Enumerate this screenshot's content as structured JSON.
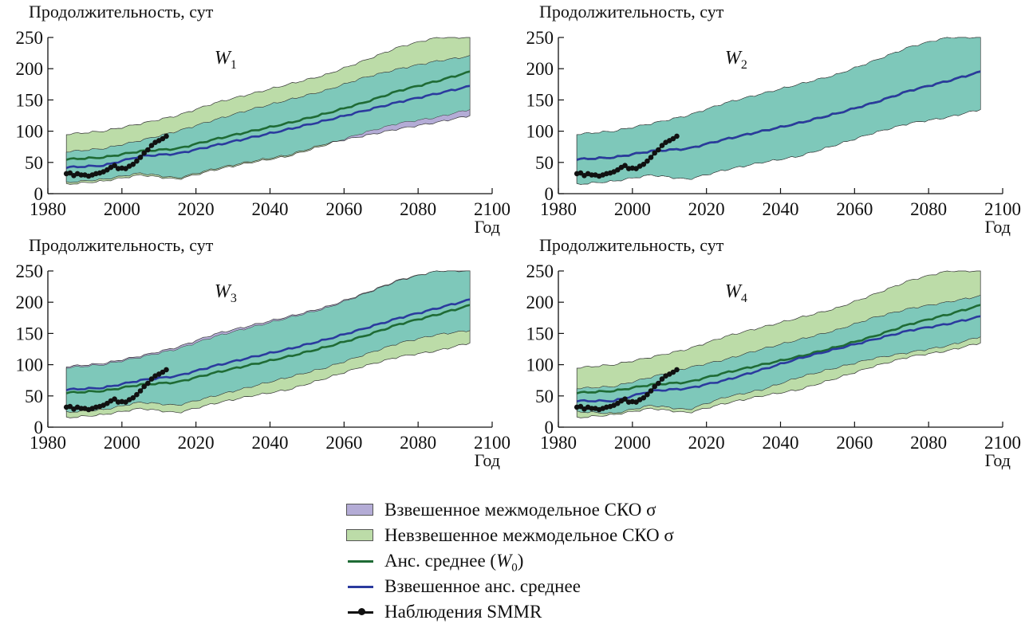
{
  "legend": {
    "weighted_sigma": "Взвешенное межмодельное СКО σ",
    "unweighted_sigma": "Невзвешенное межмодельное СКО σ",
    "ens_mean_prefix": "Анс. среднее (",
    "ens_mean_symbol": "W",
    "ens_mean_sub": "0",
    "ens_mean_suffix": ")",
    "weighted_mean": "Взвешенное анс. среднее",
    "observations": "Наблюдения SMMR"
  },
  "colors": {
    "weighted_band": "#b4acd6",
    "unweighted_band": "#bcdca8",
    "overlap_band": "#7ec8ba",
    "ens_mean": "#1f6b35",
    "weighted_mean": "#2b3a9e",
    "observations": "#111111"
  },
  "chart_data": [
    {
      "type": "area",
      "symbol": "W",
      "subscript": "1",
      "ylabel": "Продолжительность, сут",
      "xlabel": "Год",
      "xlim": [
        1980,
        2100
      ],
      "ylim": [
        0,
        250
      ],
      "xticks": [
        1980,
        2000,
        2020,
        2040,
        2060,
        2080,
        2100
      ],
      "yticks": [
        0,
        50,
        100,
        150,
        200,
        250
      ],
      "series": [
        {
          "name": "Анс. среднее (W0)",
          "x": [
            1985,
            1995,
            2005,
            2015,
            2025,
            2035,
            2045,
            2055,
            2065,
            2075,
            2085,
            2094
          ],
          "y": [
            55,
            58,
            68,
            72,
            87,
            100,
            113,
            128,
            145,
            165,
            180,
            195
          ]
        },
        {
          "name": "Взвешенное анс. среднее",
          "x": [
            1985,
            1995,
            2005,
            2015,
            2025,
            2035,
            2045,
            2055,
            2065,
            2075,
            2085,
            2094
          ],
          "y": [
            42,
            45,
            60,
            64,
            77,
            90,
            103,
            117,
            132,
            147,
            160,
            172
          ]
        },
        {
          "name": "Невзвешенное межмодельное СКО σ",
          "x": [
            1985,
            1995,
            2005,
            2015,
            2025,
            2035,
            2045,
            2055,
            2065,
            2075,
            2085,
            2094
          ],
          "lower": [
            15,
            20,
            30,
            23,
            38,
            50,
            60,
            78,
            97,
            113,
            122,
            135
          ],
          "upper": [
            95,
            100,
            112,
            125,
            145,
            160,
            175,
            190,
            212,
            235,
            250,
            250
          ]
        },
        {
          "name": "Взвешенное межмодельное СКО σ",
          "x": [
            1985,
            1995,
            2005,
            2015,
            2025,
            2035,
            2045,
            2055,
            2065,
            2075,
            2085,
            2094
          ],
          "lower": [
            18,
            23,
            33,
            25,
            40,
            52,
            62,
            80,
            92,
            104,
            114,
            125
          ],
          "upper": [
            67,
            72,
            85,
            100,
            118,
            135,
            150,
            165,
            185,
            200,
            212,
            220
          ]
        }
      ]
    },
    {
      "type": "area",
      "symbol": "W",
      "subscript": "2",
      "ylabel": "Продолжительность, сут",
      "xlabel": "Год",
      "xlim": [
        1980,
        2100
      ],
      "ylim": [
        0,
        250
      ],
      "xticks": [
        1980,
        2000,
        2020,
        2040,
        2060,
        2080,
        2100
      ],
      "yticks": [
        0,
        50,
        100,
        150,
        200,
        250
      ],
      "series": [
        {
          "name": "Анс. среднее (W0)",
          "x": [
            1985,
            1995,
            2005,
            2015,
            2025,
            2035,
            2045,
            2055,
            2065,
            2075,
            2085,
            2094
          ],
          "y": [
            55,
            58,
            68,
            72,
            87,
            100,
            113,
            128,
            145,
            165,
            180,
            195
          ]
        },
        {
          "name": "Взвешенное анс. среднее",
          "x": [
            1985,
            1995,
            2005,
            2015,
            2025,
            2035,
            2045,
            2055,
            2065,
            2075,
            2085,
            2094
          ],
          "y": [
            55,
            58,
            68,
            72,
            87,
            100,
            113,
            128,
            145,
            165,
            180,
            195
          ]
        },
        {
          "name": "Невзвешенное межмодельное СКО σ",
          "x": [
            1985,
            1995,
            2005,
            2015,
            2025,
            2035,
            2045,
            2055,
            2065,
            2075,
            2085,
            2094
          ],
          "lower": [
            15,
            20,
            30,
            23,
            38,
            50,
            60,
            78,
            97,
            113,
            122,
            135
          ],
          "upper": [
            95,
            100,
            112,
            125,
            145,
            160,
            175,
            190,
            212,
            235,
            250,
            250
          ]
        },
        {
          "name": "Взвешенное межмодельное СКО σ",
          "x": [
            1985,
            1995,
            2005,
            2015,
            2025,
            2035,
            2045,
            2055,
            2065,
            2075,
            2085,
            2094
          ],
          "lower": [
            15,
            20,
            30,
            23,
            38,
            50,
            60,
            78,
            97,
            113,
            122,
            135
          ],
          "upper": [
            95,
            100,
            112,
            125,
            145,
            160,
            175,
            190,
            212,
            235,
            250,
            250
          ]
        }
      ]
    },
    {
      "type": "area",
      "symbol": "W",
      "subscript": "3",
      "ylabel": "Продолжительность, сут",
      "xlabel": "Год",
      "xlim": [
        1980,
        2100
      ],
      "ylim": [
        0,
        250
      ],
      "xticks": [
        1980,
        2000,
        2020,
        2040,
        2060,
        2080,
        2100
      ],
      "yticks": [
        0,
        50,
        100,
        150,
        200,
        250
      ],
      "series": [
        {
          "name": "Анс. среднее (W0)",
          "x": [
            1985,
            1995,
            2005,
            2015,
            2025,
            2035,
            2045,
            2055,
            2065,
            2075,
            2085,
            2094
          ],
          "y": [
            55,
            58,
            68,
            72,
            87,
            100,
            113,
            128,
            145,
            165,
            180,
            195
          ]
        },
        {
          "name": "Взвешенное анс. среднее",
          "x": [
            1985,
            1995,
            2005,
            2015,
            2025,
            2035,
            2045,
            2055,
            2065,
            2075,
            2085,
            2094
          ],
          "y": [
            60,
            63,
            75,
            82,
            98,
            112,
            125,
            140,
            157,
            175,
            190,
            204
          ]
        },
        {
          "name": "Невзвешенное межмодельное СКО σ",
          "x": [
            1985,
            1995,
            2005,
            2015,
            2025,
            2035,
            2045,
            2055,
            2065,
            2075,
            2085,
            2094
          ],
          "lower": [
            15,
            20,
            30,
            23,
            38,
            50,
            60,
            78,
            97,
            113,
            122,
            135
          ],
          "upper": [
            95,
            100,
            112,
            125,
            145,
            160,
            175,
            190,
            212,
            235,
            250,
            250
          ]
        },
        {
          "name": "Взвешенное межмодельное СКО σ",
          "x": [
            1985,
            1995,
            2005,
            2015,
            2025,
            2035,
            2045,
            2055,
            2065,
            2075,
            2085,
            2094
          ],
          "lower": [
            24,
            28,
            40,
            35,
            50,
            65,
            80,
            95,
            115,
            135,
            148,
            155
          ],
          "upper": [
            97,
            102,
            114,
            128,
            149,
            163,
            177,
            192,
            213,
            236,
            250,
            252
          ]
        }
      ]
    },
    {
      "type": "area",
      "symbol": "W",
      "subscript": "4",
      "ylabel": "Продолжительность, сут",
      "xlabel": "Год",
      "xlim": [
        1980,
        2100
      ],
      "ylim": [
        0,
        250
      ],
      "xticks": [
        1980,
        2000,
        2020,
        2040,
        2060,
        2080,
        2100
      ],
      "yticks": [
        0,
        50,
        100,
        150,
        200,
        250
      ],
      "series": [
        {
          "name": "Анс. среднее (W0)",
          "x": [
            1985,
            1995,
            2005,
            2015,
            2025,
            2035,
            2045,
            2055,
            2065,
            2075,
            2085,
            2094
          ],
          "y": [
            55,
            58,
            68,
            72,
            87,
            100,
            113,
            128,
            145,
            165,
            180,
            195
          ]
        },
        {
          "name": "Взвешенное анс. среднее",
          "x": [
            1985,
            1995,
            2005,
            2015,
            2025,
            2035,
            2045,
            2055,
            2065,
            2075,
            2085,
            2094
          ],
          "y": [
            42,
            42,
            58,
            62,
            75,
            92,
            110,
            125,
            140,
            155,
            165,
            177
          ]
        },
        {
          "name": "Невзвешенное межмодельное СКО σ",
          "x": [
            1985,
            1995,
            2005,
            2015,
            2025,
            2035,
            2045,
            2055,
            2065,
            2075,
            2085,
            2094
          ],
          "lower": [
            15,
            20,
            30,
            23,
            38,
            50,
            60,
            78,
            97,
            113,
            122,
            135
          ],
          "upper": [
            95,
            100,
            112,
            125,
            145,
            160,
            175,
            190,
            212,
            235,
            250,
            250
          ]
        },
        {
          "name": "Взвешенное межмодельное СКО σ",
          "x": [
            1985,
            1995,
            2005,
            2015,
            2025,
            2035,
            2045,
            2055,
            2065,
            2075,
            2085,
            2094
          ],
          "lower": [
            25,
            22,
            35,
            28,
            48,
            60,
            80,
            95,
            110,
            120,
            130,
            145
          ],
          "upper": [
            62,
            65,
            80,
            95,
            108,
            125,
            140,
            155,
            175,
            190,
            200,
            210
          ]
        }
      ]
    }
  ],
  "observations": {
    "name": "Наблюдения SMMR",
    "x": [
      1985,
      1986,
      1987,
      1988,
      1989,
      1990,
      1991,
      1992,
      1993,
      1994,
      1995,
      1996,
      1997,
      1998,
      1999,
      2000,
      2001,
      2002,
      2003,
      2004,
      2005,
      2006,
      2007,
      2008,
      2009,
      2010,
      2011,
      2012
    ],
    "y": [
      32,
      33,
      29,
      32,
      30,
      30,
      28,
      30,
      32,
      33,
      35,
      38,
      42,
      45,
      40,
      41,
      40,
      44,
      47,
      52,
      58,
      65,
      70,
      77,
      82,
      85,
      88,
      92
    ]
  }
}
